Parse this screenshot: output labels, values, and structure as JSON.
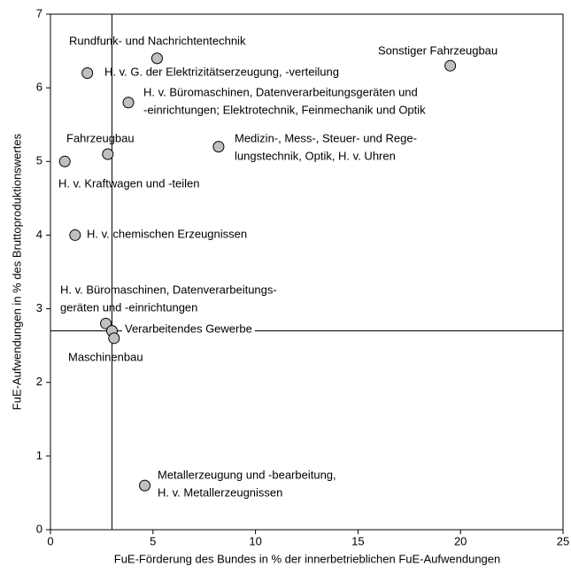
{
  "chart_data": {
    "type": "scatter",
    "x_label": "FuE-Förderung des Bundes in % der innerbetrieblichen FuE-Aufwendungen",
    "y_label": "FuE-Aufwendungen in % des Bruttoproduktionswertes",
    "xlim": [
      0,
      25
    ],
    "ylim": [
      0,
      7
    ],
    "xticks": [
      0,
      5,
      10,
      15,
      20,
      25
    ],
    "yticks": [
      0,
      1,
      2,
      3,
      4,
      5,
      6,
      7
    ],
    "reference_lines": {
      "x": 3,
      "y": 2.7
    },
    "marker_color": "#c0c0c0",
    "points": [
      {
        "label": [
          "Rundfunk- und Nachrichtentechnik"
        ],
        "x": 5.2,
        "y": 6.4
      },
      {
        "label": [
          "Sonstiger Fahrzeugbau"
        ],
        "x": 19.5,
        "y": 6.3
      },
      {
        "label": [
          "H. v. G. der Elektrizitätserzeugung, -verteilung"
        ],
        "x": 1.8,
        "y": 6.2
      },
      {
        "label": [
          "H. v. Büromaschinen, Datenverarbeitungsgeräten und",
          "-einrichtungen; Elektrotechnik, Feinmechanik und Optik"
        ],
        "x": 3.8,
        "y": 5.8
      },
      {
        "label": [
          "Fahrzeugbau"
        ],
        "x": 2.8,
        "y": 5.1
      },
      {
        "label": [
          "H. v. Kraftwagen und -teilen"
        ],
        "x": 0.7,
        "y": 5.0
      },
      {
        "label": [
          "Medizin-, Mess-, Steuer- und Rege-",
          "lungstechnik, Optik, H. v. Uhren"
        ],
        "x": 8.2,
        "y": 5.2
      },
      {
        "label": [
          "H. v. chemischen Erzeugnissen"
        ],
        "x": 1.2,
        "y": 4.0
      },
      {
        "label": [
          "H. v. Büromaschinen, Datenverarbeitungs-",
          "geräten und -einrichtungen"
        ],
        "x": 2.7,
        "y": 2.8
      },
      {
        "label": [
          "Verarbeitendes Gewerbe"
        ],
        "x": 3.0,
        "y": 2.7
      },
      {
        "label": [
          "Maschinenbau"
        ],
        "x": 3.1,
        "y": 2.6
      },
      {
        "label": [
          "Metallerzeugung und -bearbeitung,",
          "H. v. Metallerzeugnissen"
        ],
        "x": 4.6,
        "y": 0.6
      }
    ]
  }
}
